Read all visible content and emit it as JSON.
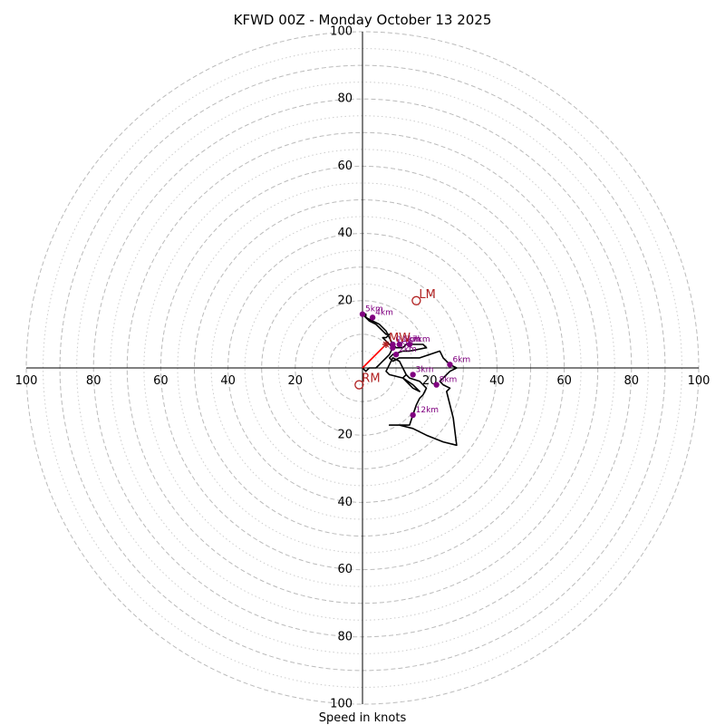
{
  "chart_data": {
    "type": "hodograph",
    "title": "KFWD 00Z - Monday October 13 2025",
    "xlabel": "Speed in knots",
    "xlim": [
      -100,
      100
    ],
    "ylim": [
      -100,
      100
    ],
    "ring_labels": {
      "x_left": [
        "100",
        "80",
        "60",
        "40",
        "20"
      ],
      "x_right": [
        "20",
        "40",
        "60",
        "80",
        "100"
      ],
      "y_top": [
        "100",
        "80",
        "60",
        "40",
        "20"
      ],
      "y_bottom": [
        "20",
        "40",
        "60",
        "80",
        "100"
      ]
    },
    "ring_label_values": {
      "x_left": [
        -100,
        -80,
        -60,
        -40,
        -20
      ],
      "x_right": [
        20,
        40,
        60,
        80,
        100
      ],
      "y_top": [
        100,
        80,
        60,
        40,
        20
      ],
      "y_bottom": [
        -20,
        -40,
        -60,
        -80,
        -100
      ]
    },
    "major_rings": [
      10,
      20,
      30,
      40,
      50,
      60,
      70,
      80,
      90,
      100
    ],
    "minor_rings": [
      5,
      15,
      25,
      35,
      45,
      55,
      65,
      75,
      85,
      95
    ],
    "colors": {
      "trace": "#000000",
      "height_marker": "#800080",
      "storm_motion": "#b22222",
      "mean_wind_vector": "#ff0000",
      "grid": "#bbbbbb"
    },
    "trace": [
      [
        0,
        0
      ],
      [
        1,
        -1
      ],
      [
        2,
        0
      ],
      [
        4,
        0
      ],
      [
        5,
        1
      ],
      [
        6,
        2
      ],
      [
        7,
        3
      ],
      [
        8,
        4
      ],
      [
        9,
        6
      ],
      [
        8,
        7
      ],
      [
        7,
        8
      ],
      [
        6,
        9
      ],
      [
        7,
        9
      ],
      [
        8,
        10
      ],
      [
        7,
        10
      ],
      [
        6,
        11
      ],
      [
        5,
        12
      ],
      [
        4,
        13
      ],
      [
        2,
        14
      ],
      [
        1,
        15
      ],
      [
        1,
        16
      ],
      [
        0,
        16
      ],
      [
        1,
        15
      ],
      [
        3,
        14
      ],
      [
        5,
        13
      ],
      [
        7,
        11
      ],
      [
        8,
        9
      ],
      [
        9,
        7
      ],
      [
        10,
        6
      ],
      [
        12,
        6
      ],
      [
        13,
        7
      ],
      [
        14,
        7
      ],
      [
        15,
        7
      ],
      [
        18,
        7
      ],
      [
        19,
        6
      ],
      [
        14,
        5
      ],
      [
        12,
        5
      ],
      [
        9,
        4
      ],
      [
        8,
        3
      ],
      [
        9,
        2
      ],
      [
        11,
        3
      ],
      [
        14,
        3
      ],
      [
        17,
        3
      ],
      [
        23,
        5
      ],
      [
        24,
        3
      ],
      [
        26,
        1
      ],
      [
        28,
        0
      ],
      [
        26,
        -1
      ],
      [
        23,
        -4
      ],
      [
        24,
        -5
      ],
      [
        26,
        -6
      ],
      [
        25,
        -7
      ],
      [
        27,
        -15
      ],
      [
        28,
        -23
      ],
      [
        24,
        -22
      ],
      [
        19,
        -20
      ],
      [
        15,
        -18
      ],
      [
        11,
        -17
      ],
      [
        8,
        -17
      ],
      [
        14,
        -17
      ],
      [
        15,
        -14
      ],
      [
        16,
        -11
      ],
      [
        17,
        -9
      ],
      [
        18,
        -8
      ],
      [
        19,
        -6
      ],
      [
        17,
        -4
      ],
      [
        14,
        -3
      ],
      [
        13,
        -2
      ],
      [
        12,
        0
      ],
      [
        11,
        2
      ],
      [
        9,
        3
      ],
      [
        8,
        1
      ],
      [
        7,
        -1
      ],
      [
        8,
        -2
      ],
      [
        12,
        -3
      ],
      [
        15,
        -5
      ],
      [
        17,
        -7
      ],
      [
        15,
        -6
      ],
      [
        14,
        -5
      ],
      [
        13,
        -4
      ],
      [
        12,
        -3
      ],
      [
        13,
        -2
      ]
    ],
    "height_markers": [
      {
        "label": "0.5km",
        "u": 9,
        "v": 7
      },
      {
        "label": "1km",
        "u": 9,
        "v": 6
      },
      {
        "label": "2km",
        "u": 10,
        "v": 4
      },
      {
        "label": "3km",
        "u": 15,
        "v": -2
      },
      {
        "label": "4km",
        "u": 3,
        "v": 15
      },
      {
        "label": "5km",
        "u": 0,
        "v": 16
      },
      {
        "label": "6km",
        "u": 26,
        "v": 1
      },
      {
        "label": "7km",
        "u": 14,
        "v": 7
      },
      {
        "label": "8km",
        "u": 22,
        "v": -5
      },
      {
        "label": "9km",
        "u": 11,
        "v": 7
      },
      {
        "label": "12km",
        "u": 15,
        "v": -14
      }
    ],
    "storm_motion": [
      {
        "label": "LM",
        "u": 16,
        "v": 20
      },
      {
        "label": "RM",
        "u": -1,
        "v": -5
      },
      {
        "label": "MW",
        "u": 7,
        "v": 7
      }
    ],
    "mean_wind_vector": {
      "u": 7,
      "v": 7
    }
  }
}
